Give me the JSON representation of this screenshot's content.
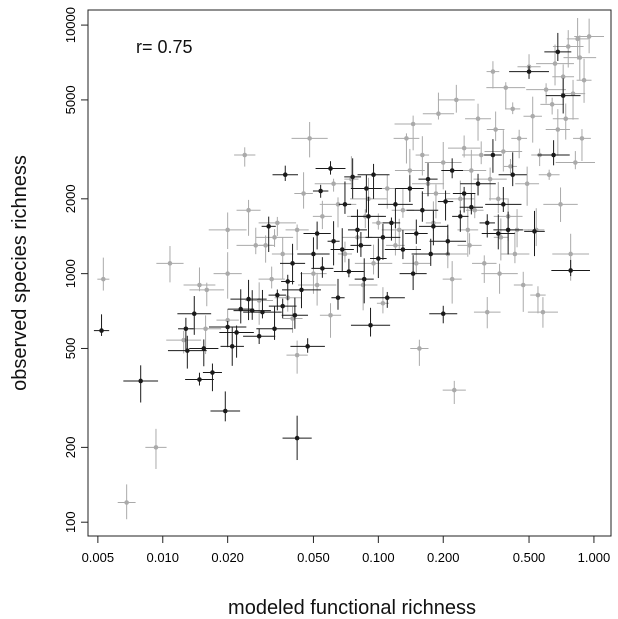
{
  "chart_data": {
    "type": "scatter",
    "xlabel": "modeled functional richness",
    "ylabel": "observed species richness",
    "annotation": "r= 0.75",
    "log_x": true,
    "log_y": true,
    "xlim": [
      0.0045,
      1.2
    ],
    "ylim": [
      88,
      11500
    ],
    "x_ticks": [
      0.005,
      0.01,
      0.02,
      0.05,
      0.1,
      0.2,
      0.5,
      1.0
    ],
    "x_tick_labels": [
      "0.005",
      "0.010",
      "0.020",
      "0.050",
      "0.100",
      "0.200",
      "0.500",
      "1.000"
    ],
    "y_ticks": [
      100,
      200,
      500,
      1000,
      2000,
      5000,
      10000
    ],
    "y_tick_labels": [
      "100",
      "200",
      "500",
      "1000",
      "2000",
      "5000",
      "10000"
    ],
    "grid": false,
    "series": [
      {
        "color": "#aaaaaa",
        "points": [
          {
            "x": 0.0053,
            "y": 950
          },
          {
            "x": 0.0068,
            "y": 120
          },
          {
            "x": 0.0093,
            "y": 200
          },
          {
            "x": 0.0108,
            "y": 1100
          },
          {
            "x": 0.0125,
            "y": 540
          },
          {
            "x": 0.0148,
            "y": 900
          },
          {
            "x": 0.0158,
            "y": 600
          },
          {
            "x": 0.016,
            "y": 860
          },
          {
            "x": 0.02,
            "y": 1500
          },
          {
            "x": 0.02,
            "y": 1000
          },
          {
            "x": 0.02,
            "y": 650
          },
          {
            "x": 0.024,
            "y": 3000
          },
          {
            "x": 0.025,
            "y": 1800
          },
          {
            "x": 0.028,
            "y": 780
          },
          {
            "x": 0.03,
            "y": 1300
          },
          {
            "x": 0.032,
            "y": 950
          },
          {
            "x": 0.034,
            "y": 1600
          },
          {
            "x": 0.036,
            "y": 1200
          },
          {
            "x": 0.038,
            "y": 800
          },
          {
            "x": 0.04,
            "y": 660
          },
          {
            "x": 0.042,
            "y": 470
          },
          {
            "x": 0.045,
            "y": 2100
          },
          {
            "x": 0.048,
            "y": 3500
          },
          {
            "x": 0.05,
            "y": 1000
          },
          {
            "x": 0.052,
            "y": 900
          },
          {
            "x": 0.055,
            "y": 1700
          },
          {
            "x": 0.06,
            "y": 680
          },
          {
            "x": 0.065,
            "y": 1900
          },
          {
            "x": 0.07,
            "y": 1200
          },
          {
            "x": 0.075,
            "y": 2400
          },
          {
            "x": 0.08,
            "y": 1400
          },
          {
            "x": 0.085,
            "y": 900
          },
          {
            "x": 0.09,
            "y": 2000
          },
          {
            "x": 0.095,
            "y": 1100
          },
          {
            "x": 0.1,
            "y": 1600
          },
          {
            "x": 0.105,
            "y": 760
          },
          {
            "x": 0.11,
            "y": 2200
          },
          {
            "x": 0.12,
            "y": 1300
          },
          {
            "x": 0.13,
            "y": 1800
          },
          {
            "x": 0.135,
            "y": 3500
          },
          {
            "x": 0.14,
            "y": 2600
          },
          {
            "x": 0.145,
            "y": 4000
          },
          {
            "x": 0.15,
            "y": 1100
          },
          {
            "x": 0.155,
            "y": 500
          },
          {
            "x": 0.16,
            "y": 3000
          },
          {
            "x": 0.17,
            "y": 2300
          },
          {
            "x": 0.18,
            "y": 1600
          },
          {
            "x": 0.19,
            "y": 4400
          },
          {
            "x": 0.2,
            "y": 2800
          },
          {
            "x": 0.21,
            "y": 1200
          },
          {
            "x": 0.22,
            "y": 950
          },
          {
            "x": 0.225,
            "y": 340
          },
          {
            "x": 0.23,
            "y": 5000
          },
          {
            "x": 0.24,
            "y": 2000
          },
          {
            "x": 0.25,
            "y": 3200
          },
          {
            "x": 0.26,
            "y": 1500
          },
          {
            "x": 0.27,
            "y": 2600
          },
          {
            "x": 0.28,
            "y": 1800
          },
          {
            "x": 0.29,
            "y": 4200
          },
          {
            "x": 0.3,
            "y": 3000
          },
          {
            "x": 0.31,
            "y": 1100
          },
          {
            "x": 0.32,
            "y": 700
          },
          {
            "x": 0.33,
            "y": 2400
          },
          {
            "x": 0.34,
            "y": 6500
          },
          {
            "x": 0.35,
            "y": 3800
          },
          {
            "x": 0.36,
            "y": 2000
          },
          {
            "x": 0.37,
            "y": 1400
          },
          {
            "x": 0.38,
            "y": 3100
          },
          {
            "x": 0.39,
            "y": 5600
          },
          {
            "x": 0.4,
            "y": 1700
          },
          {
            "x": 0.41,
            "y": 2700
          },
          {
            "x": 0.42,
            "y": 4600
          },
          {
            "x": 0.43,
            "y": 1200
          },
          {
            "x": 0.45,
            "y": 3500
          },
          {
            "x": 0.47,
            "y": 900
          },
          {
            "x": 0.49,
            "y": 2300
          },
          {
            "x": 0.5,
            "y": 6800
          },
          {
            "x": 0.52,
            "y": 4300
          },
          {
            "x": 0.54,
            "y": 1500
          },
          {
            "x": 0.55,
            "y": 820
          },
          {
            "x": 0.56,
            "y": 3000
          },
          {
            "x": 0.58,
            "y": 700
          },
          {
            "x": 0.6,
            "y": 5500
          },
          {
            "x": 0.62,
            "y": 2500
          },
          {
            "x": 0.64,
            "y": 4800
          },
          {
            "x": 0.66,
            "y": 7000
          },
          {
            "x": 0.68,
            "y": 3800
          },
          {
            "x": 0.7,
            "y": 1900
          },
          {
            "x": 0.72,
            "y": 6200
          },
          {
            "x": 0.74,
            "y": 4200
          },
          {
            "x": 0.76,
            "y": 8200
          },
          {
            "x": 0.78,
            "y": 1200
          },
          {
            "x": 0.8,
            "y": 5300
          },
          {
            "x": 0.82,
            "y": 2800
          },
          {
            "x": 0.84,
            "y": 8800
          },
          {
            "x": 0.86,
            "y": 7400
          },
          {
            "x": 0.88,
            "y": 3500
          },
          {
            "x": 0.9,
            "y": 6000
          },
          {
            "x": 0.95,
            "y": 9000
          },
          {
            "x": 0.44,
            "y": 1500
          },
          {
            "x": 0.365,
            "y": 1000
          },
          {
            "x": 0.265,
            "y": 1300
          },
          {
            "x": 0.185,
            "y": 2100
          },
          {
            "x": 0.125,
            "y": 1500
          },
          {
            "x": 0.087,
            "y": 1700
          },
          {
            "x": 0.062,
            "y": 2300
          },
          {
            "x": 0.042,
            "y": 1500
          },
          {
            "x": 0.033,
            "y": 1400
          },
          {
            "x": 0.027,
            "y": 1300
          }
        ]
      },
      {
        "color": "#1a1a1a",
        "points": [
          {
            "x": 0.0052,
            "y": 590
          },
          {
            "x": 0.0079,
            "y": 370
          },
          {
            "x": 0.0128,
            "y": 600
          },
          {
            "x": 0.013,
            "y": 490
          },
          {
            "x": 0.014,
            "y": 690
          },
          {
            "x": 0.0148,
            "y": 375
          },
          {
            "x": 0.0155,
            "y": 500
          },
          {
            "x": 0.017,
            "y": 400
          },
          {
            "x": 0.0195,
            "y": 280
          },
          {
            "x": 0.02,
            "y": 610
          },
          {
            "x": 0.021,
            "y": 510
          },
          {
            "x": 0.022,
            "y": 580
          },
          {
            "x": 0.023,
            "y": 720
          },
          {
            "x": 0.025,
            "y": 790
          },
          {
            "x": 0.026,
            "y": 710
          },
          {
            "x": 0.028,
            "y": 560
          },
          {
            "x": 0.029,
            "y": 700
          },
          {
            "x": 0.031,
            "y": 1550
          },
          {
            "x": 0.033,
            "y": 600
          },
          {
            "x": 0.034,
            "y": 820
          },
          {
            "x": 0.036,
            "y": 740
          },
          {
            "x": 0.037,
            "y": 2500
          },
          {
            "x": 0.038,
            "y": 930
          },
          {
            "x": 0.04,
            "y": 1100
          },
          {
            "x": 0.041,
            "y": 680
          },
          {
            "x": 0.042,
            "y": 218
          },
          {
            "x": 0.044,
            "y": 860
          },
          {
            "x": 0.047,
            "y": 510
          },
          {
            "x": 0.05,
            "y": 1200
          },
          {
            "x": 0.052,
            "y": 1450
          },
          {
            "x": 0.054,
            "y": 2150
          },
          {
            "x": 0.055,
            "y": 1050
          },
          {
            "x": 0.06,
            "y": 2650
          },
          {
            "x": 0.062,
            "y": 1350
          },
          {
            "x": 0.065,
            "y": 800
          },
          {
            "x": 0.068,
            "y": 1250
          },
          {
            "x": 0.07,
            "y": 1900
          },
          {
            "x": 0.073,
            "y": 1020
          },
          {
            "x": 0.076,
            "y": 2450
          },
          {
            "x": 0.08,
            "y": 1500
          },
          {
            "x": 0.083,
            "y": 1300
          },
          {
            "x": 0.086,
            "y": 950
          },
          {
            "x": 0.088,
            "y": 2200
          },
          {
            "x": 0.09,
            "y": 1700
          },
          {
            "x": 0.092,
            "y": 620
          },
          {
            "x": 0.095,
            "y": 2500
          },
          {
            "x": 0.1,
            "y": 1150
          },
          {
            "x": 0.105,
            "y": 1400
          },
          {
            "x": 0.11,
            "y": 800
          },
          {
            "x": 0.115,
            "y": 1600
          },
          {
            "x": 0.12,
            "y": 1900
          },
          {
            "x": 0.13,
            "y": 1250
          },
          {
            "x": 0.14,
            "y": 2200
          },
          {
            "x": 0.145,
            "y": 1000
          },
          {
            "x": 0.15,
            "y": 1450
          },
          {
            "x": 0.16,
            "y": 1800
          },
          {
            "x": 0.17,
            "y": 2400
          },
          {
            "x": 0.175,
            "y": 1200
          },
          {
            "x": 0.18,
            "y": 1550
          },
          {
            "x": 0.2,
            "y": 690
          },
          {
            "x": 0.205,
            "y": 1950
          },
          {
            "x": 0.21,
            "y": 1350
          },
          {
            "x": 0.22,
            "y": 2600
          },
          {
            "x": 0.24,
            "y": 1700
          },
          {
            "x": 0.25,
            "y": 2100
          },
          {
            "x": 0.27,
            "y": 1850
          },
          {
            "x": 0.29,
            "y": 2300
          },
          {
            "x": 0.32,
            "y": 1600
          },
          {
            "x": 0.34,
            "y": 3000
          },
          {
            "x": 0.36,
            "y": 1450
          },
          {
            "x": 0.38,
            "y": 1900
          },
          {
            "x": 0.4,
            "y": 1500
          },
          {
            "x": 0.42,
            "y": 2500
          },
          {
            "x": 0.5,
            "y": 6500
          },
          {
            "x": 0.53,
            "y": 1480
          },
          {
            "x": 0.65,
            "y": 3000
          },
          {
            "x": 0.68,
            "y": 7800
          },
          {
            "x": 0.72,
            "y": 5200
          },
          {
            "x": 0.78,
            "y": 1030
          }
        ]
      }
    ]
  }
}
